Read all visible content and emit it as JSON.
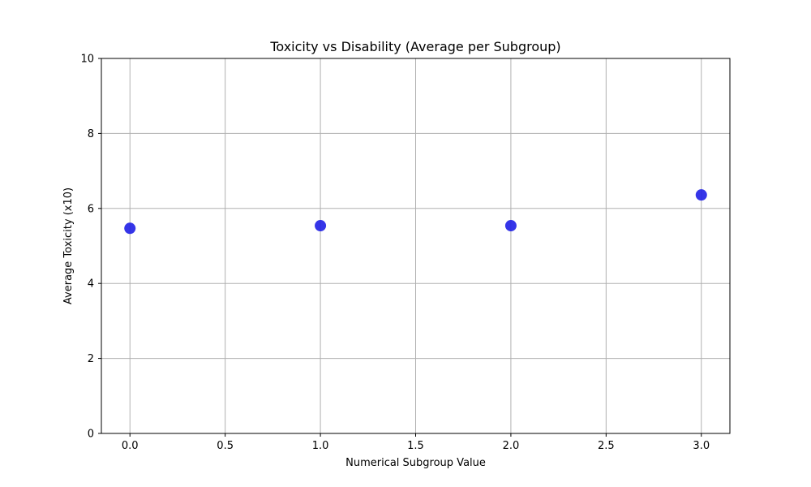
{
  "chart_data": {
    "type": "scatter",
    "title": "Toxicity vs Disability (Average per Subgroup)",
    "xlabel": "Numerical Subgroup Value",
    "ylabel": "Average Toxicity (x10)",
    "xlim": [
      -0.15,
      3.15
    ],
    "ylim": [
      0,
      10
    ],
    "xticks": [
      0.0,
      0.5,
      1.0,
      1.5,
      2.0,
      2.5,
      3.0
    ],
    "xtick_labels": [
      "0.0",
      "0.5",
      "1.0",
      "1.5",
      "2.0",
      "2.5",
      "3.0"
    ],
    "yticks": [
      0,
      2,
      4,
      6,
      8,
      10
    ],
    "ytick_labels": [
      "0",
      "2",
      "4",
      "6",
      "8",
      "10"
    ],
    "grid": true,
    "series": [
      {
        "color": "#1f1fe6",
        "points": [
          {
            "x": 0,
            "y": 5.47
          },
          {
            "x": 1,
            "y": 5.54
          },
          {
            "x": 2,
            "y": 5.54
          },
          {
            "x": 3,
            "y": 6.36
          }
        ]
      }
    ]
  }
}
